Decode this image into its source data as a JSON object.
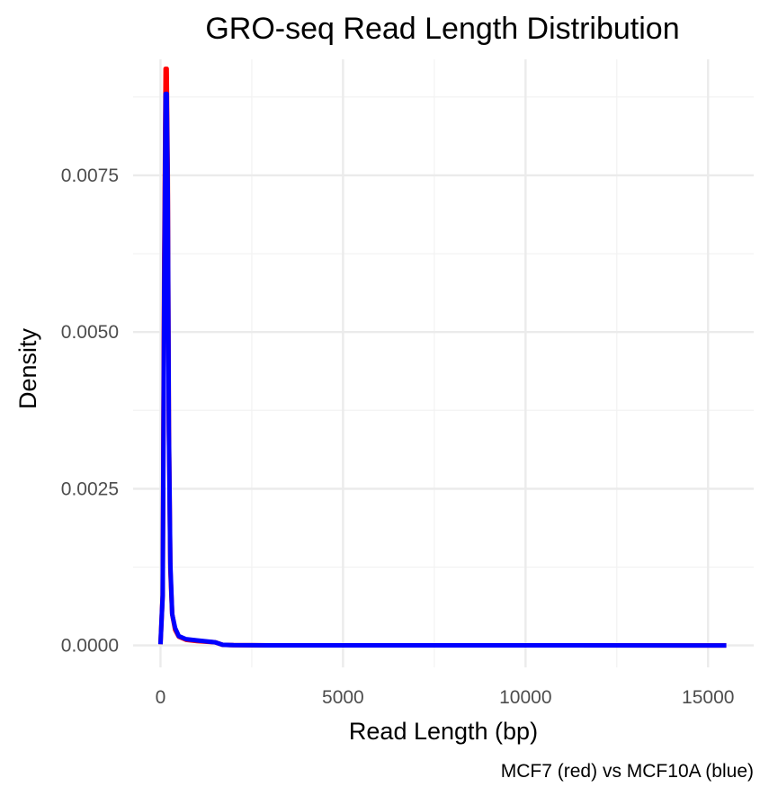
{
  "chart_data": {
    "type": "line",
    "title": "GRO-seq Read Length Distribution",
    "xlabel": "Read Length (bp)",
    "ylabel": "Density",
    "caption": "MCF7 (red) vs MCF10A (blue)",
    "xlim": [
      -750,
      16250
    ],
    "ylim": [
      -0.00035,
      0.00935
    ],
    "x_ticks": [
      0,
      5000,
      10000,
      15000
    ],
    "x_tick_labels": [
      "0",
      "5000",
      "10000",
      "15000"
    ],
    "y_ticks": [
      0.0,
      0.0025,
      0.005,
      0.0075
    ],
    "y_tick_labels": [
      "0.0000",
      "0.0025",
      "0.0050",
      "0.0075"
    ],
    "grid": true,
    "series": [
      {
        "color": "#ff0000",
        "x": [
          0,
          60,
          100,
          140,
          170,
          200,
          230,
          270,
          320,
          400,
          500,
          700,
          1000,
          1500,
          1700,
          2000,
          3000,
          5000,
          10000,
          15500
        ],
        "y": [
          2e-05,
          0.0008,
          0.006,
          0.0092,
          0.0092,
          0.0075,
          0.0035,
          0.0012,
          0.0005,
          0.00025,
          0.00014,
          9e-05,
          7e-05,
          5e-05,
          1e-05,
          5e-06,
          2e-06,
          1.5e-06,
          1e-06,
          0.0
        ]
      },
      {
        "color": "#0000ff",
        "x": [
          0,
          60,
          100,
          140,
          170,
          200,
          230,
          270,
          320,
          400,
          500,
          700,
          1000,
          1500,
          1700,
          2000,
          3000,
          5000,
          10000,
          15500
        ],
        "y": [
          2e-05,
          0.0008,
          0.0055,
          0.0088,
          0.0088,
          0.0072,
          0.0034,
          0.0013,
          0.0005,
          0.00028,
          0.00015,
          0.0001,
          8e-05,
          5e-05,
          1e-05,
          5e-06,
          2e-06,
          1.5e-06,
          1e-06,
          0.0
        ]
      }
    ]
  }
}
